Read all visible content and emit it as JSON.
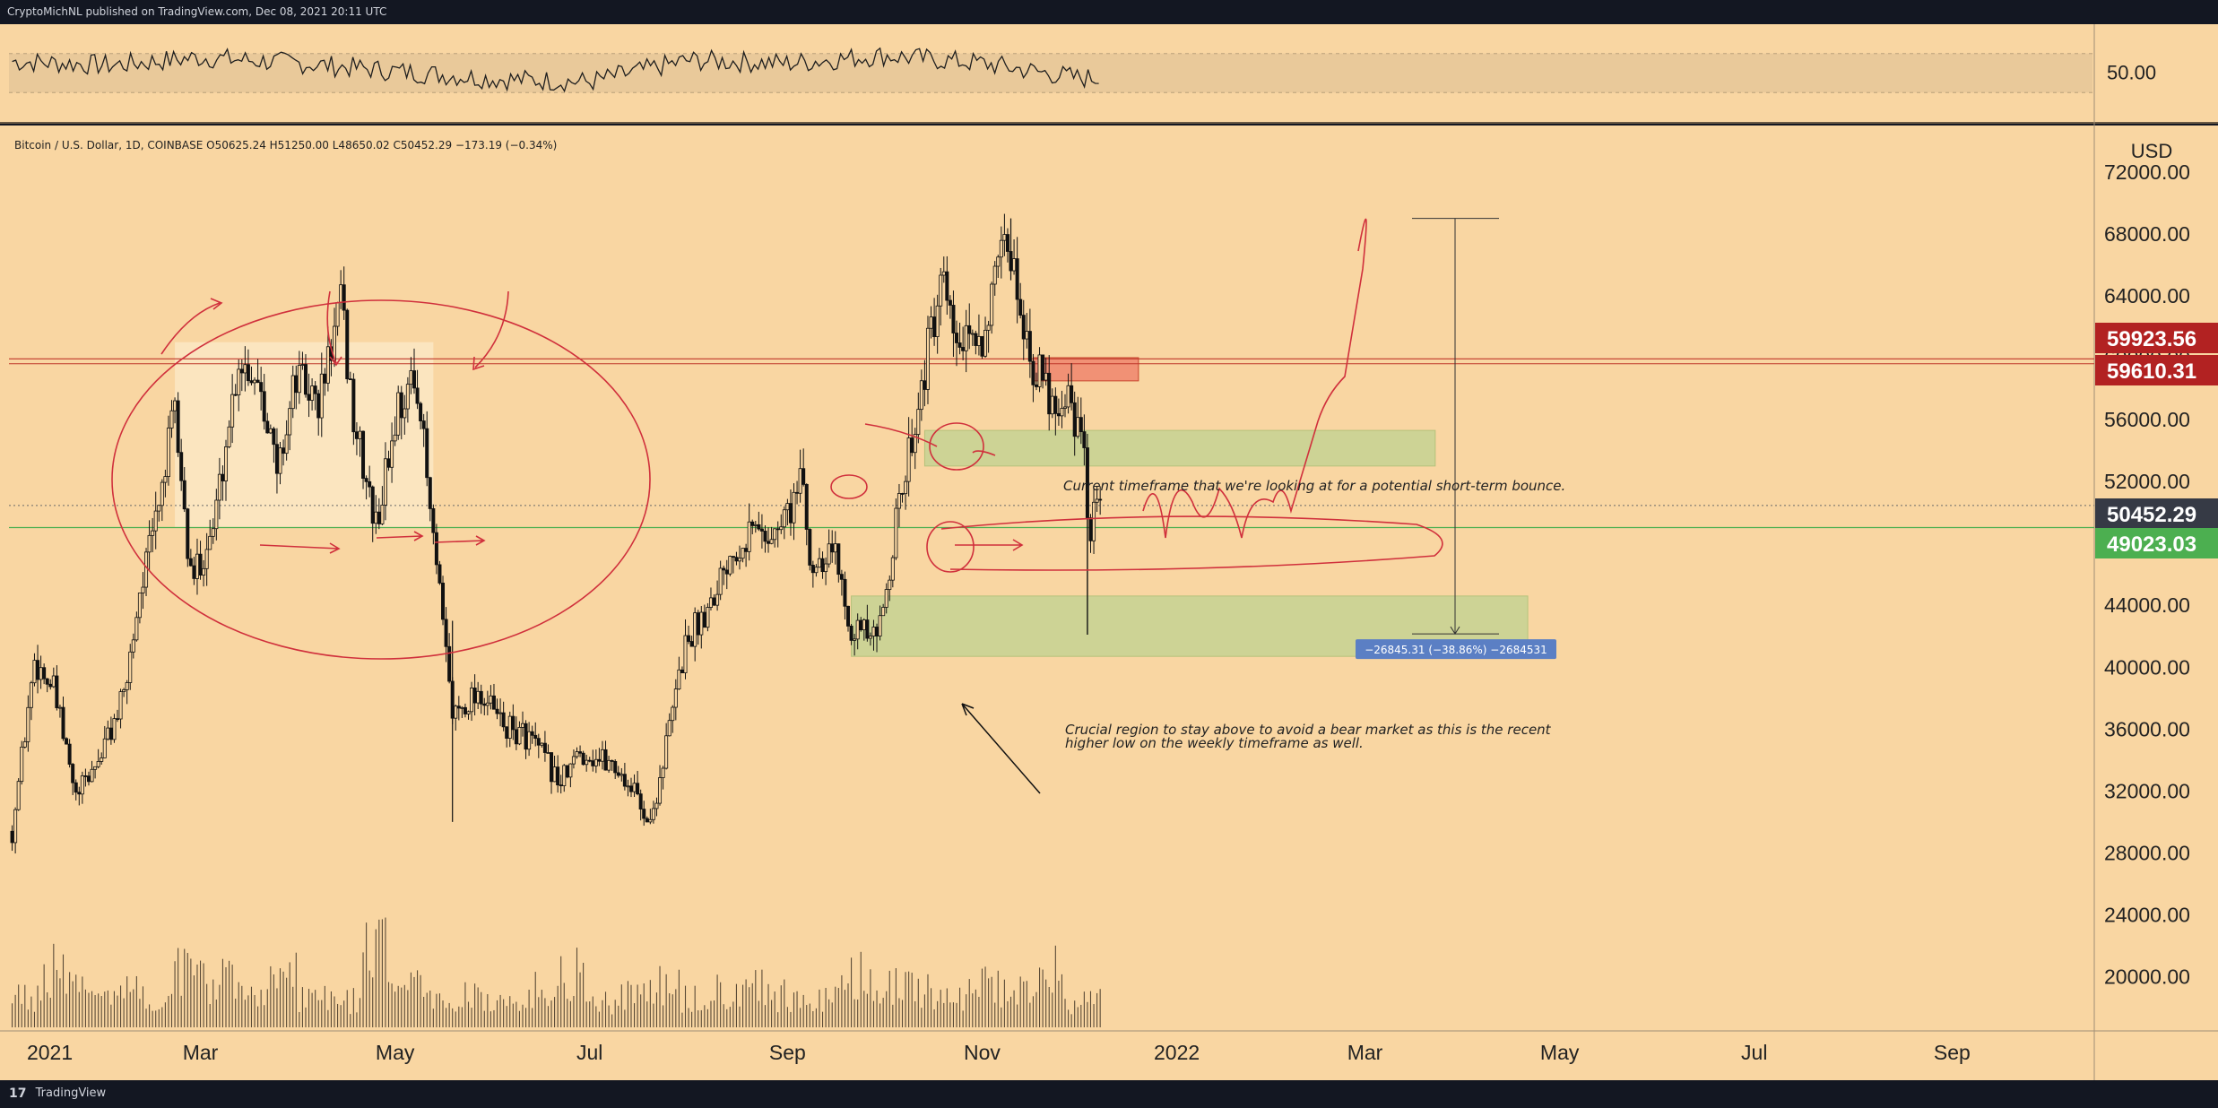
{
  "header": {
    "published_text": "CryptoMichNL published on TradingView.com, Dec 08, 2021 20:11 UTC"
  },
  "footer": {
    "brand": "TradingView",
    "logo_glyph": "17"
  },
  "colors": {
    "background": "#f9d6a2",
    "frame": "#131722",
    "red_label": "#b22222",
    "dark_label": "#363a45",
    "green_label": "#4caf50",
    "green_zone": "#c8d393",
    "red_zone": "#f08a70",
    "annotation": "#d0303c",
    "measure": "#5b7fc4"
  },
  "chart_data": [
    {
      "type": "line",
      "name_key": "oscillator",
      "y_tick_labels": [
        "50.00"
      ],
      "y_ticks": [
        50
      ],
      "ylim": [
        0,
        100
      ],
      "band": [
        30,
        70
      ],
      "x": [
        "2021-01",
        "2021-02",
        "2021-03",
        "2021-04",
        "2021-05",
        "2021-06",
        "2021-07",
        "2021-08",
        "2021-09",
        "2021-10",
        "2021-11",
        "2021-12"
      ],
      "values": [
        62,
        58,
        66,
        60,
        52,
        44,
        41,
        63,
        60,
        68,
        60,
        45
      ]
    },
    {
      "type": "candlestick",
      "title": "Bitcoin / U.S. Dollar, 1D, COINBASE",
      "ohlc_text": "O50625.24  H51250.00  L48650.02  C50452.29  −173.19 (−0.34%)",
      "ylabel": "USD",
      "ylim": [
        16500,
        75000
      ],
      "y_ticks": [
        20000,
        24000,
        28000,
        32000,
        36000,
        40000,
        44000,
        48000,
        52000,
        56000,
        60000,
        64000,
        68000,
        72000
      ],
      "y_tick_labels": [
        "20000.00",
        "24000.00",
        "28000.00",
        "32000.00",
        "36000.00",
        "40000.00",
        "44000.00",
        "48000.00",
        "52000.00",
        "56000.00",
        "60000.00",
        "64000.00",
        "68000.00",
        "72000.00"
      ],
      "x_tick_labels": [
        "2021",
        "Mar",
        "May",
        "Jul",
        "Sep",
        "Nov",
        "2022",
        "Mar",
        "May",
        "Jul",
        "Sep"
      ],
      "x_tick_dates": [
        "2021-01-01",
        "2021-03-01",
        "2021-05-01",
        "2021-07-01",
        "2021-09-01",
        "2021-11-01",
        "2022-01-01",
        "2022-03-01",
        "2022-05-01",
        "2022-07-01",
        "2022-09-01"
      ],
      "x_range": [
        "2020-12-31",
        "2022-10-15"
      ],
      "close_path": [
        [
          "2021-01-01",
          29400
        ],
        [
          "2021-01-08",
          40500
        ],
        [
          "2021-01-14",
          38500
        ],
        [
          "2021-01-21",
          31500
        ],
        [
          "2021-01-28",
          34000
        ],
        [
          "2021-02-05",
          38000
        ],
        [
          "2021-02-10",
          45000
        ],
        [
          "2021-02-14",
          48500
        ],
        [
          "2021-02-21",
          56500
        ],
        [
          "2021-02-26",
          45500
        ],
        [
          "2021-03-05",
          49000
        ],
        [
          "2021-03-13",
          60000
        ],
        [
          "2021-03-20",
          58500
        ],
        [
          "2021-03-25",
          52500
        ],
        [
          "2021-03-31",
          58800
        ],
        [
          "2021-04-07",
          57000
        ],
        [
          "2021-04-14",
          63500
        ],
        [
          "2021-04-18",
          56000
        ],
        [
          "2021-04-25",
          49000
        ],
        [
          "2021-05-02",
          57000
        ],
        [
          "2021-05-08",
          58500
        ],
        [
          "2021-05-12",
          50000
        ],
        [
          "2021-05-19",
          37000
        ],
        [
          "2021-05-27",
          38500
        ],
        [
          "2021-06-05",
          36000
        ],
        [
          "2021-06-12",
          35500
        ],
        [
          "2021-06-22",
          32500
        ],
        [
          "2021-06-28",
          34500
        ],
        [
          "2021-07-08",
          33800
        ],
        [
          "2021-07-15",
          32000
        ],
        [
          "2021-07-20",
          29800
        ],
        [
          "2021-07-25",
          35000
        ],
        [
          "2021-07-31",
          41500
        ],
        [
          "2021-08-07",
          44000
        ],
        [
          "2021-08-14",
          47500
        ],
        [
          "2021-08-21",
          49000
        ],
        [
          "2021-08-28",
          48500
        ],
        [
          "2021-09-06",
          52000
        ],
        [
          "2021-09-08",
          46500
        ],
        [
          "2021-09-15",
          48000
        ],
        [
          "2021-09-21",
          42800
        ],
        [
          "2021-09-29",
          41500
        ],
        [
          "2021-10-04",
          48000
        ],
        [
          "2021-10-10",
          55000
        ],
        [
          "2021-10-16",
          61500
        ],
        [
          "2021-10-20",
          64500
        ],
        [
          "2021-10-23",
          61000
        ],
        [
          "2021-10-28",
          60500
        ],
        [
          "2021-11-01",
          61500
        ],
        [
          "2021-11-09",
          67500
        ],
        [
          "2021-11-12",
          64500
        ],
        [
          "2021-11-17",
          59500
        ],
        [
          "2021-11-24",
          57000
        ],
        [
          "2021-11-28",
          58000
        ],
        [
          "2021-12-03",
          53500
        ],
        [
          "2021-12-04",
          49000
        ],
        [
          "2021-12-08",
          50452
        ]
      ],
      "volume_profile": [
        0.35,
        0.6,
        0.4,
        0.45,
        0.3,
        0.65,
        0.5,
        0.4,
        0.55,
        0.35,
        0.3,
        0.8,
        0.45,
        0.3,
        0.35,
        0.25,
        0.4,
        0.6,
        0.3,
        0.35,
        0.45,
        0.3,
        0.4,
        0.5,
        0.35,
        0.3,
        0.55,
        0.45,
        0.4,
        0.35,
        0.5,
        0.4,
        0.6,
        0.3
      ],
      "price_labels": [
        {
          "text": "59923.56",
          "value": 59923.56,
          "color": "#b22222"
        },
        {
          "text": "59610.31",
          "value": 59610.31,
          "color": "#b22222"
        },
        {
          "text": "50452.29",
          "value": 50452.29,
          "color": "#363a45"
        },
        {
          "text": "49023.03",
          "value": 49023.03,
          "color": "#4caf50"
        }
      ],
      "zones": [
        {
          "kind": "range",
          "from": "2021-02-21",
          "to": "2021-05-13",
          "low": 49000,
          "high": 61000,
          "color": "#fbe7c4"
        },
        {
          "kind": "supply",
          "from": "2021-11-17",
          "to": "2021-12-20",
          "low": 58500,
          "high": 60000,
          "color": "#f08a70"
        },
        {
          "kind": "demand",
          "from": "2021-10-14",
          "to": "2022-03-23",
          "low": 53000,
          "high": 55300,
          "color": "#c8d393"
        },
        {
          "kind": "demand",
          "from": "2021-09-21",
          "to": "2022-04-21",
          "low": 40700,
          "high": 44600,
          "color": "#c8d393"
        }
      ],
      "annotations": [
        "Current timeframe that we're looking at for a potential short-term bounce.",
        "Crucial region to stay above to avoid a bear market as this is the recent",
        "higher low on the weekly timeframe as well."
      ],
      "measure": {
        "from_value": 69000,
        "to_value": 42155,
        "label": "−26845.31 (−38.86%) −2684531"
      }
    }
  ]
}
